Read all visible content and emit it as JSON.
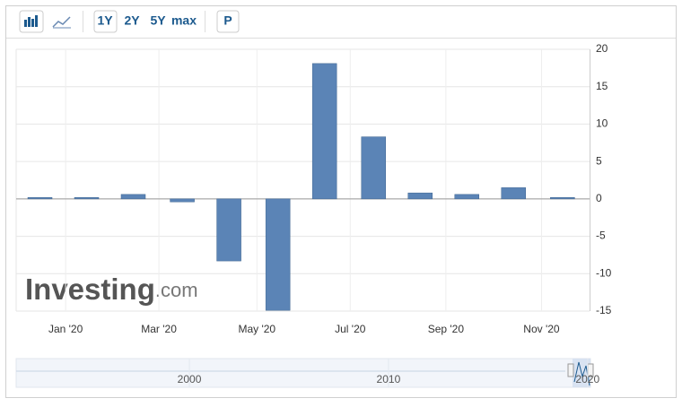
{
  "toolbar": {
    "buttons": [
      "1Y",
      "2Y",
      "5Y",
      "max",
      "P"
    ]
  },
  "chart_data": {
    "type": "bar",
    "x": [
      -0.55,
      0.45,
      1.45,
      2.5,
      3.5,
      4.55,
      5.55,
      6.6,
      7.6,
      8.6,
      9.6,
      10.65
    ],
    "values": [
      0.2,
      0.2,
      0.6,
      -0.4,
      -8.3,
      -14.9,
      18.1,
      8.3,
      0.8,
      0.6,
      1.5,
      0.2
    ],
    "color": "#5b84b6",
    "xlim": [
      -1.06,
      11.23
    ],
    "ylim": [
      -15,
      20
    ],
    "xticks": [
      {
        "value": 0,
        "label": "Jan '20"
      },
      {
        "value": 2,
        "label": "Mar '20"
      },
      {
        "value": 4.1,
        "label": "May '20"
      },
      {
        "value": 6.1,
        "label": "Jul '20"
      },
      {
        "value": 8.15,
        "label": "Sep '20"
      },
      {
        "value": 10.2,
        "label": "Nov '20"
      }
    ],
    "yticks": [
      -15,
      -10,
      -5,
      0,
      5,
      10,
      15,
      20
    ],
    "grid": true
  },
  "watermark": {
    "brand": "Investing",
    "suffix": ".com"
  },
  "navigator": {
    "xlim": [
      1991.3,
      2020.1
    ],
    "xticks": [
      2000,
      2010,
      2020
    ]
  }
}
